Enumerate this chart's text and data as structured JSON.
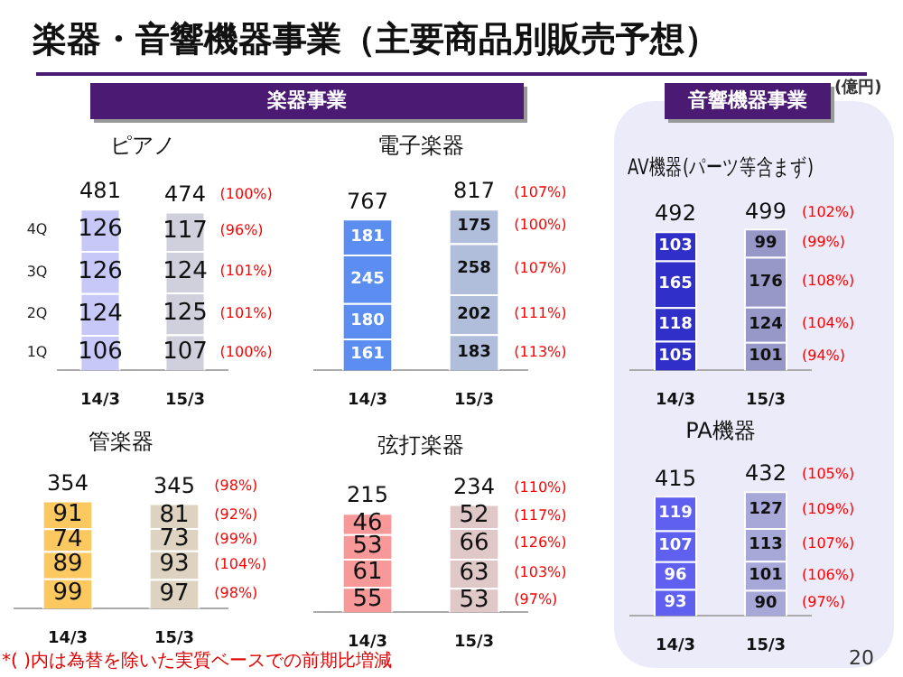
{
  "chart_data": [
    {
      "type": "other",
      "title": "楽器・音響機器事業（主要商品別販売予想）",
      "annotations": [
        "楽器事業",
        "音響機器事業",
        "(億円)",
        "*(  )内は為替を除いた実質ベースでの前期比増減",
        "20"
      ]
    },
    {
      "type": "bar",
      "title": "ピアノ",
      "stacked": true,
      "data_labels": true,
      "grid": false,
      "legend": false,
      "tick_labels": "x",
      "categories": [
        "14/3",
        "15/3"
      ],
      "totals": [
        "481",
        "474"
      ],
      "series": [
        {
          "name": "1Q",
          "colors": [
            "#c8c8f8",
            "#d0d0dc"
          ],
          "values": [
            106,
            107
          ]
        },
        {
          "name": "2Q",
          "colors": [
            "#c8c8f8",
            "#d0d0dc"
          ],
          "values": [
            124,
            125
          ]
        },
        {
          "name": "3Q",
          "colors": [
            "#c8c8f8",
            "#d0d0dc"
          ],
          "values": [
            126,
            124
          ]
        },
        {
          "name": "4Q",
          "colors": [
            "#c8c8f8",
            "#d0d0dc"
          ],
          "values": [
            126,
            117
          ]
        }
      ],
      "annotations": [
        {
          "text": "(100%)",
          "x": "15/3",
          "y": 474
        },
        "(96%)",
        "(101%)",
        "(101%)",
        "(100%)"
      ]
    },
    {
      "type": "bar",
      "title": "電子楽器",
      "stacked": true,
      "data_labels": true,
      "grid": false,
      "legend": false,
      "tick_labels": "x",
      "categories": [
        "14/3",
        "15/3"
      ],
      "totals": [
        "767",
        "817"
      ],
      "series": [
        {
          "colors": [
            "#5b8ef0",
            "#b0bedc"
          ],
          "values": [
            161,
            183
          ]
        },
        {
          "colors": [
            "#5b8ef0",
            "#b0bedc"
          ],
          "values": [
            180,
            202
          ]
        },
        {
          "colors": [
            "#5b8ef0",
            "#b0bedc"
          ],
          "values": [
            245,
            258
          ]
        },
        {
          "colors": [
            "#5b8ef0",
            "#b0bedc"
          ],
          "values": [
            181,
            175
          ]
        }
      ],
      "annotations": [
        {
          "text": "(107%)",
          "x": "15/3",
          "y": 817
        },
        "(100%)",
        "(107%)",
        "(111%)",
        "(113%)"
      ]
    },
    {
      "type": "bar",
      "title": "管楽器",
      "stacked": true,
      "data_labels": true,
      "grid": false,
      "legend": false,
      "tick_labels": "x",
      "categories": [
        "14/3",
        "15/3"
      ],
      "totals": [
        "354",
        "345"
      ],
      "series": [
        {
          "colors": [
            "#fcc860",
            "#ddd3c0"
          ],
          "values": [
            99,
            97
          ]
        },
        {
          "colors": [
            "#fcc860",
            "#ddd3c0"
          ],
          "values": [
            89,
            93
          ]
        },
        {
          "colors": [
            "#fcc860",
            "#ddd3c0"
          ],
          "values": [
            74,
            73
          ]
        },
        {
          "colors": [
            "#fcc860",
            "#ddd3c0"
          ],
          "values": [
            91,
            81
          ]
        }
      ],
      "annotations": [
        {
          "text": "(98%)",
          "x": "15/3",
          "y": 345
        },
        "(92%)",
        "(99%)",
        "(104%)",
        "(98%)"
      ]
    },
    {
      "type": "bar",
      "title": "弦打楽器",
      "stacked": true,
      "data_labels": true,
      "grid": false,
      "legend": false,
      "tick_labels": "x",
      "categories": [
        "14/3",
        "15/3"
      ],
      "totals": [
        "215",
        "234"
      ],
      "series": [
        {
          "colors": [
            "#f89898",
            "#e0c8c8"
          ],
          "values": [
            55,
            53
          ]
        },
        {
          "colors": [
            "#f89898",
            "#e0c8c8"
          ],
          "values": [
            61,
            63
          ]
        },
        {
          "colors": [
            "#f89898",
            "#e0c8c8"
          ],
          "values": [
            53,
            66
          ]
        },
        {
          "colors": [
            "#f89898",
            "#e0c8c8"
          ],
          "values": [
            46,
            52
          ]
        }
      ],
      "annotations": [
        {
          "text": "(110%)",
          "x": "15/3",
          "y": 234
        },
        "(117%)",
        "(126%)",
        "(103%)",
        "(97%)"
      ]
    },
    {
      "type": "bar",
      "title": "AV機器(パーツ等含まず)",
      "stacked": true,
      "data_labels": true,
      "grid": false,
      "legend": false,
      "tick_labels": "x",
      "categories": [
        "14/3",
        "15/3"
      ],
      "totals": [
        "492",
        "499"
      ],
      "series": [
        {
          "colors": [
            "#3030c8",
            "#9898c8"
          ],
          "values": [
            105,
            101
          ]
        },
        {
          "colors": [
            "#3030c8",
            "#9898c8"
          ],
          "values": [
            118,
            124
          ]
        },
        {
          "colors": [
            "#3030c8",
            "#9898c8"
          ],
          "values": [
            165,
            176
          ]
        },
        {
          "colors": [
            "#3030c8",
            "#9898c8"
          ],
          "values": [
            103,
            99
          ]
        }
      ],
      "annotations": [
        {
          "text": "(102%)",
          "x": "15/3",
          "y": 499
        },
        "(99%)",
        "(108%)",
        "(104%)",
        "(94%)"
      ]
    },
    {
      "type": "bar",
      "title": "PA機器",
      "stacked": true,
      "data_labels": true,
      "grid": false,
      "legend": false,
      "tick_labels": "x",
      "categories": [
        "14/3",
        "15/3"
      ],
      "totals": [
        "415",
        "432"
      ],
      "series": [
        {
          "colors": [
            "#6060f0",
            "#a8a8d8"
          ],
          "values": [
            93,
            90
          ]
        },
        {
          "colors": [
            "#6060f0",
            "#a8a8d8"
          ],
          "values": [
            96,
            101
          ]
        },
        {
          "colors": [
            "#6060f0",
            "#a8a8d8"
          ],
          "values": [
            107,
            113
          ]
        },
        {
          "colors": [
            "#6060f0",
            "#a8a8d8"
          ],
          "values": [
            119,
            127
          ]
        }
      ],
      "annotations": [
        {
          "text": "(105%)",
          "x": "15/3",
          "y": 432
        },
        "(109%)",
        "(107%)",
        "(106%)",
        "(97%)"
      ]
    }
  ]
}
